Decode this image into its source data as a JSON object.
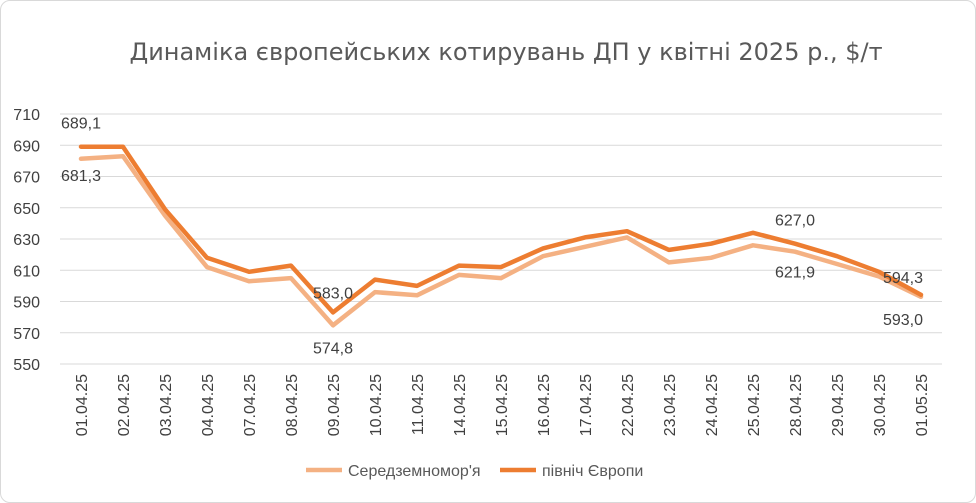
{
  "chart_data": {
    "type": "line",
    "title": "Динаміка європейських котирувань ДП у квітні 2025 р., $/т",
    "xlabel": "",
    "ylabel": "",
    "ylim": [
      550,
      710
    ],
    "yticks": [
      550,
      570,
      590,
      610,
      630,
      650,
      670,
      690,
      710
    ],
    "grid": "horizontal",
    "legend_position": "bottom",
    "categories": [
      "01.04.25",
      "02.04.25",
      "03.04.25",
      "04.04.25",
      "07.04.25",
      "08.04.25",
      "09.04.25",
      "10.04.25",
      "11.04.25",
      "14.04.25",
      "15.04.25",
      "16.04.25",
      "17.04.25",
      "22.04.25",
      "23.04.25",
      "24.04.25",
      "25.04.25",
      "28.04.25",
      "29.04.25",
      "30.04.25",
      "01.05.25"
    ],
    "series": [
      {
        "name": "Середземномор'я",
        "color": "#f4b183",
        "values": [
          681.3,
          683,
          645,
          612,
          603,
          605,
          574.8,
          596,
          594,
          607,
          605,
          619,
          625,
          631,
          615,
          618,
          626,
          621.9,
          614,
          606,
          593.0
        ],
        "labels": {
          "0": "681,3",
          "6": "574,8",
          "17": "621,9",
          "20": "593,0"
        }
      },
      {
        "name": "північ Європи",
        "color": "#ed7d31",
        "values": [
          689.1,
          689,
          649,
          618,
          609,
          613,
          583.0,
          604,
          600,
          613,
          612,
          624,
          631,
          635,
          623,
          627,
          634,
          627.0,
          619,
          609,
          594.3
        ],
        "labels": {
          "0": "689,1",
          "6": "583,0",
          "17": "627,0",
          "20": "594,3"
        }
      }
    ]
  }
}
